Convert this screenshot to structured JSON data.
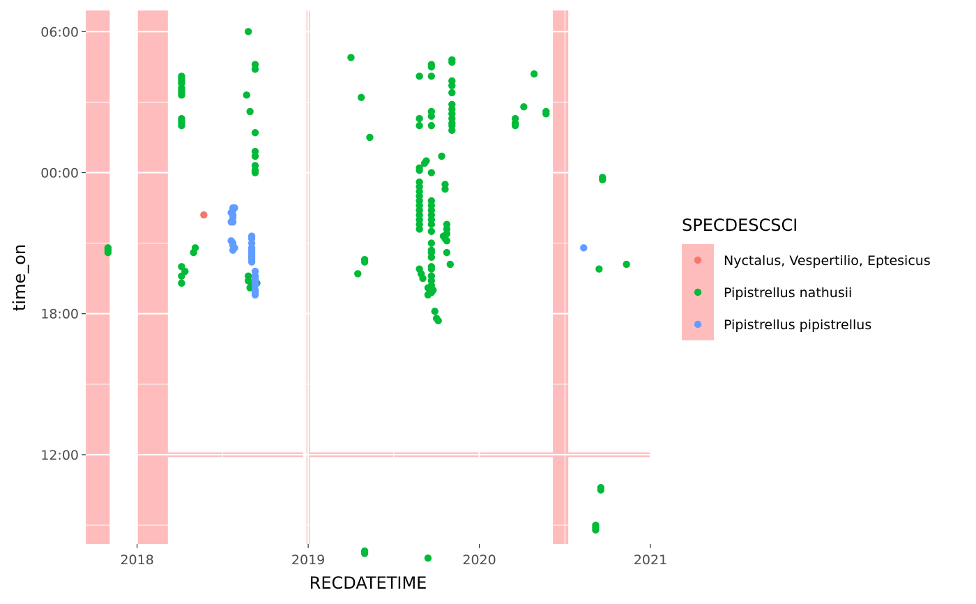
{
  "colors": {
    "night_fill": "#FFBCBC",
    "grid": "#FFFFFF",
    "Nyctalus, Vespertilio, Eptesicus": "#F8766D",
    "Pipistrellus nathusii": "#00BA38",
    "Pipistrellus pipistrellus": "#619CFF"
  },
  "chart_data": {
    "type": "scatter",
    "xlabel": "RECDATETIME",
    "ylabel": "time_on",
    "xlim": [
      2017.7,
      2021.0
    ],
    "ylim_hours_since_noon": [
      -3.8,
      18.9
    ],
    "x_ticks": [
      {
        "value": 2018,
        "label": "2018"
      },
      {
        "value": 2019,
        "label": "2019"
      },
      {
        "value": 2020,
        "label": "2020"
      },
      {
        "value": 2021,
        "label": "2021"
      }
    ],
    "y_ticks": [
      {
        "value": 18,
        "label": "06:00"
      },
      {
        "value": 12,
        "label": "00:00"
      },
      {
        "value": 6,
        "label": "18:00"
      },
      {
        "value": 0,
        "label": "12:00"
      }
    ],
    "grid": true,
    "legend": {
      "title": "SPECDESCSCI",
      "position": "right",
      "entries": [
        "Nyctalus, Vespertilio, Eptesicus",
        "Pipistrellus nathusii",
        "Pipistrellus pipistrellus"
      ]
    },
    "night_periods": [
      {
        "x_start": 2017.7,
        "x_end": 2017.84,
        "y_start": -5.7,
        "y_end": 19.0
      },
      {
        "x_start": 2018.0,
        "x_end": 2018.18,
        "y_start": -5.7,
        "y_end": 19.0
      },
      {
        "x_start": 2018.18,
        "x_end": 2018.97,
        "y_start": -0.1,
        "y_end": 0.1
      },
      {
        "x_start": 2018.99,
        "x_end": 2019.01,
        "y_start": -5.7,
        "y_end": 19.0
      },
      {
        "x_start": 2019.01,
        "x_end": 2020.43,
        "y_start": -0.1,
        "y_end": 0.1
      },
      {
        "x_start": 2020.43,
        "x_end": 2020.52,
        "y_start": -5.7,
        "y_end": 19.0
      },
      {
        "x_start": 2020.52,
        "x_end": 2021.0,
        "y_start": -0.1,
        "y_end": 0.1
      }
    ],
    "series": [
      {
        "name": "Nyctalus, Vespertilio, Eptesicus",
        "points": [
          [
            2018.39,
            10.2
          ]
        ]
      },
      {
        "name": "Pipistrellus nathusii",
        "points": [
          [
            2017.83,
            8.7
          ],
          [
            2017.83,
            8.8
          ],
          [
            2017.83,
            8.6
          ],
          [
            2018.26,
            16.1
          ],
          [
            2018.26,
            16.0
          ],
          [
            2018.26,
            15.9
          ],
          [
            2018.26,
            15.8
          ],
          [
            2018.26,
            15.6
          ],
          [
            2018.26,
            15.5
          ],
          [
            2018.26,
            15.4
          ],
          [
            2018.26,
            15.3
          ],
          [
            2018.26,
            14.3
          ],
          [
            2018.26,
            14.2
          ],
          [
            2018.26,
            14.1
          ],
          [
            2018.26,
            14.0
          ],
          [
            2018.26,
            8.0
          ],
          [
            2018.26,
            7.6
          ],
          [
            2018.26,
            7.3
          ],
          [
            2018.28,
            7.8
          ],
          [
            2018.33,
            8.6
          ],
          [
            2018.34,
            8.8
          ],
          [
            2018.65,
            18.0
          ],
          [
            2018.64,
            15.3
          ],
          [
            2018.66,
            14.6
          ],
          [
            2018.69,
            16.6
          ],
          [
            2018.69,
            16.4
          ],
          [
            2018.69,
            13.7
          ],
          [
            2018.69,
            12.9
          ],
          [
            2018.69,
            12.7
          ],
          [
            2018.69,
            12.3
          ],
          [
            2018.69,
            12.1
          ],
          [
            2018.69,
            12.0
          ],
          [
            2018.65,
            7.6
          ],
          [
            2018.65,
            7.4
          ],
          [
            2018.66,
            7.1
          ],
          [
            2018.67,
            7.2
          ],
          [
            2018.7,
            7.3
          ],
          [
            2019.25,
            16.9
          ],
          [
            2019.31,
            15.2
          ],
          [
            2019.36,
            13.5
          ],
          [
            2019.33,
            8.3
          ],
          [
            2019.33,
            8.2
          ],
          [
            2019.29,
            7.7
          ],
          [
            2019.33,
            -4.2
          ],
          [
            2019.33,
            -4.1
          ],
          [
            2019.65,
            16.1
          ],
          [
            2019.65,
            14.3
          ],
          [
            2019.65,
            14.0
          ],
          [
            2019.65,
            12.2
          ],
          [
            2019.65,
            12.1
          ],
          [
            2019.65,
            11.6
          ],
          [
            2019.65,
            11.4
          ],
          [
            2019.65,
            11.2
          ],
          [
            2019.65,
            11.0
          ],
          [
            2019.65,
            10.8
          ],
          [
            2019.65,
            10.6
          ],
          [
            2019.65,
            10.4
          ],
          [
            2019.65,
            10.2
          ],
          [
            2019.65,
            10.0
          ],
          [
            2019.65,
            9.8
          ],
          [
            2019.65,
            9.6
          ],
          [
            2019.65,
            7.9
          ],
          [
            2019.66,
            7.7
          ],
          [
            2019.67,
            7.5
          ],
          [
            2019.68,
            12.4
          ],
          [
            2019.69,
            12.5
          ],
          [
            2019.72,
            16.6
          ],
          [
            2019.72,
            16.5
          ],
          [
            2019.72,
            16.1
          ],
          [
            2019.72,
            14.6
          ],
          [
            2019.72,
            14.4
          ],
          [
            2019.72,
            14.0
          ],
          [
            2019.72,
            12.0
          ],
          [
            2019.72,
            10.8
          ],
          [
            2019.72,
            10.6
          ],
          [
            2019.72,
            10.4
          ],
          [
            2019.72,
            10.2
          ],
          [
            2019.72,
            10.0
          ],
          [
            2019.72,
            9.8
          ],
          [
            2019.72,
            9.5
          ],
          [
            2019.72,
            9.0
          ],
          [
            2019.72,
            8.7
          ],
          [
            2019.72,
            8.6
          ],
          [
            2019.72,
            8.4
          ],
          [
            2019.72,
            8.0
          ],
          [
            2019.72,
            7.9
          ],
          [
            2019.72,
            7.6
          ],
          [
            2019.72,
            7.4
          ],
          [
            2019.72,
            7.2
          ],
          [
            2019.71,
            7.0
          ],
          [
            2019.7,
            7.1
          ],
          [
            2019.7,
            6.8
          ],
          [
            2019.72,
            6.9
          ],
          [
            2019.73,
            7.0
          ],
          [
            2019.74,
            6.1
          ],
          [
            2019.75,
            5.8
          ],
          [
            2019.76,
            5.7
          ],
          [
            2019.7,
            -4.4
          ],
          [
            2019.78,
            12.7
          ],
          [
            2019.79,
            9.3
          ],
          [
            2019.8,
            9.2
          ],
          [
            2019.8,
            11.5
          ],
          [
            2019.8,
            11.3
          ],
          [
            2019.81,
            9.8
          ],
          [
            2019.81,
            9.6
          ],
          [
            2019.81,
            9.4
          ],
          [
            2019.81,
            9.1
          ],
          [
            2019.81,
            8.6
          ],
          [
            2019.83,
            8.1
          ],
          [
            2019.84,
            16.8
          ],
          [
            2019.84,
            16.7
          ],
          [
            2019.84,
            15.9
          ],
          [
            2019.84,
            15.7
          ],
          [
            2019.84,
            15.4
          ],
          [
            2019.84,
            14.9
          ],
          [
            2019.84,
            14.7
          ],
          [
            2019.84,
            14.5
          ],
          [
            2019.84,
            14.3
          ],
          [
            2019.84,
            14.1
          ],
          [
            2019.84,
            14.0
          ],
          [
            2019.84,
            13.8
          ],
          [
            2020.21,
            14.3
          ],
          [
            2020.21,
            14.1
          ],
          [
            2020.21,
            14.0
          ],
          [
            2020.26,
            14.8
          ],
          [
            2020.32,
            16.2
          ],
          [
            2020.39,
            14.6
          ],
          [
            2020.39,
            14.5
          ],
          [
            2020.72,
            11.8
          ],
          [
            2020.72,
            11.7
          ],
          [
            2020.7,
            7.9
          ],
          [
            2020.86,
            8.1
          ],
          [
            2020.71,
            -1.5
          ],
          [
            2020.71,
            -1.4
          ],
          [
            2020.68,
            -3.0
          ],
          [
            2020.68,
            -3.2
          ],
          [
            2020.68,
            -3.1
          ]
        ]
      },
      {
        "name": "Pipistrellus pipistrellus",
        "points": [
          [
            2018.55,
            10.3
          ],
          [
            2018.56,
            10.4
          ],
          [
            2018.56,
            10.5
          ],
          [
            2018.57,
            10.5
          ],
          [
            2018.56,
            10.2
          ],
          [
            2018.56,
            10.1
          ],
          [
            2018.55,
            9.9
          ],
          [
            2018.56,
            9.9
          ],
          [
            2018.55,
            9.1
          ],
          [
            2018.56,
            9.0
          ],
          [
            2018.56,
            8.9
          ],
          [
            2018.57,
            8.8
          ],
          [
            2018.56,
            8.7
          ],
          [
            2018.67,
            9.3
          ],
          [
            2018.67,
            9.2
          ],
          [
            2018.67,
            9.0
          ],
          [
            2018.67,
            8.8
          ],
          [
            2018.67,
            8.7
          ],
          [
            2018.67,
            8.6
          ],
          [
            2018.67,
            8.5
          ],
          [
            2018.67,
            8.4
          ],
          [
            2018.67,
            8.3
          ],
          [
            2018.67,
            8.2
          ],
          [
            2018.69,
            7.8
          ],
          [
            2018.69,
            7.6
          ],
          [
            2018.69,
            7.5
          ],
          [
            2018.69,
            7.4
          ],
          [
            2018.69,
            7.3
          ],
          [
            2018.69,
            7.2
          ],
          [
            2018.69,
            7.0
          ],
          [
            2018.69,
            6.9
          ],
          [
            2018.69,
            6.8
          ],
          [
            2020.61,
            8.8
          ]
        ]
      }
    ]
  }
}
